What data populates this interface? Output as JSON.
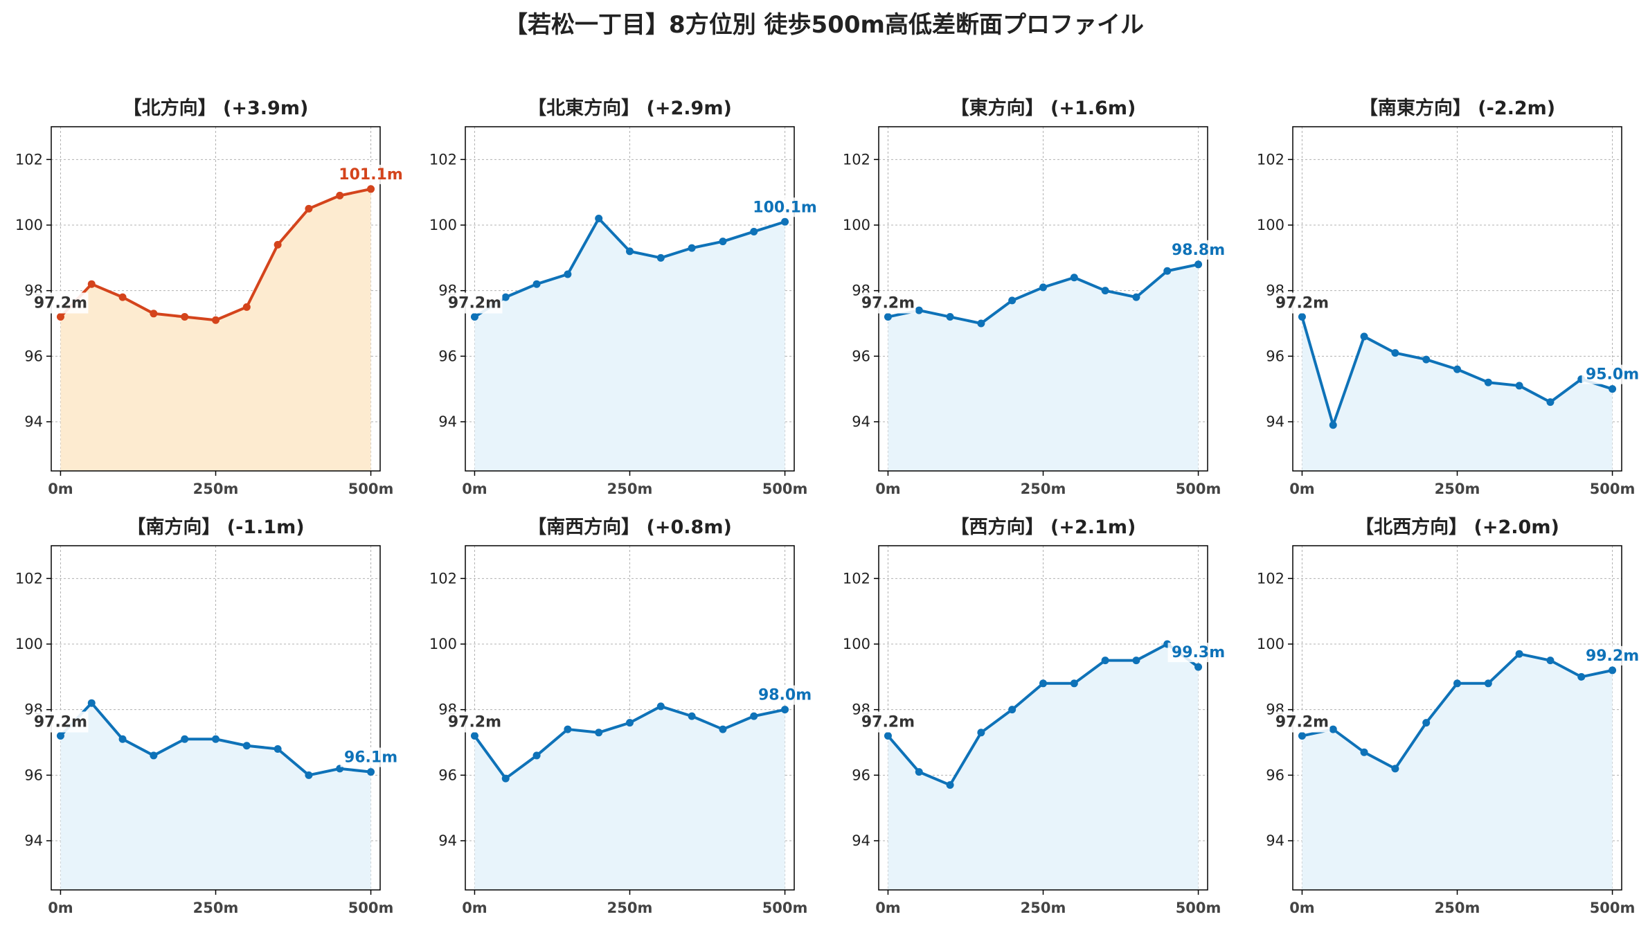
{
  "title": "【若松一丁目】8方位別 徒歩500m高低差断面プロファイル",
  "colors": {
    "highlight_line": "#d4441c",
    "highlight_fill": "#fdebd0",
    "normal_line": "#1f77b4",
    "normal_line_alt": "#0e72b8",
    "normal_fill": "#e8f4fb",
    "start_label": "#333333",
    "grid": "#b0b0b0"
  },
  "chart_data": [
    {
      "type": "line",
      "title": "【北方向】 (+3.9m)",
      "highlight": true,
      "x": [
        0,
        50,
        100,
        150,
        200,
        250,
        300,
        350,
        400,
        450,
        500
      ],
      "y": [
        97.2,
        98.2,
        97.8,
        97.3,
        97.2,
        97.1,
        97.5,
        99.4,
        100.5,
        100.9,
        101.1
      ],
      "start_label": "97.2m",
      "end_label": "101.1m"
    },
    {
      "type": "line",
      "title": "【北東方向】 (+2.9m)",
      "highlight": false,
      "x": [
        0,
        50,
        100,
        150,
        200,
        250,
        300,
        350,
        400,
        450,
        500
      ],
      "y": [
        97.2,
        97.8,
        98.2,
        98.5,
        100.2,
        99.2,
        99.0,
        99.3,
        99.5,
        99.8,
        100.1
      ],
      "start_label": "97.2m",
      "end_label": "100.1m"
    },
    {
      "type": "line",
      "title": "【東方向】 (+1.6m)",
      "highlight": false,
      "x": [
        0,
        50,
        100,
        150,
        200,
        250,
        300,
        350,
        400,
        450,
        500
      ],
      "y": [
        97.2,
        97.4,
        97.2,
        97.0,
        97.7,
        98.1,
        98.4,
        98.0,
        97.8,
        98.6,
        98.8
      ],
      "start_label": "97.2m",
      "end_label": "98.8m"
    },
    {
      "type": "line",
      "title": "【南東方向】 (-2.2m)",
      "highlight": false,
      "x": [
        0,
        50,
        100,
        150,
        200,
        250,
        300,
        350,
        400,
        450,
        500
      ],
      "y": [
        97.2,
        93.9,
        96.6,
        96.1,
        95.9,
        95.6,
        95.2,
        95.1,
        94.6,
        95.3,
        95.0
      ],
      "start_label": "97.2m",
      "end_label": "95.0m"
    },
    {
      "type": "line",
      "title": "【南方向】 (-1.1m)",
      "highlight": false,
      "x": [
        0,
        50,
        100,
        150,
        200,
        250,
        300,
        350,
        400,
        450,
        500
      ],
      "y": [
        97.2,
        98.2,
        97.1,
        96.6,
        97.1,
        97.1,
        96.9,
        96.8,
        96.0,
        96.2,
        96.1
      ],
      "start_label": "97.2m",
      "end_label": "96.1m"
    },
    {
      "type": "line",
      "title": "【南西方向】 (+0.8m)",
      "highlight": false,
      "x": [
        0,
        50,
        100,
        150,
        200,
        250,
        300,
        350,
        400,
        450,
        500
      ],
      "y": [
        97.2,
        95.9,
        96.6,
        97.4,
        97.3,
        97.6,
        98.1,
        97.8,
        97.4,
        97.8,
        98.0
      ],
      "start_label": "97.2m",
      "end_label": "98.0m"
    },
    {
      "type": "line",
      "title": "【西方向】 (+2.1m)",
      "highlight": false,
      "x": [
        0,
        50,
        100,
        150,
        200,
        250,
        300,
        350,
        400,
        450,
        500
      ],
      "y": [
        97.2,
        96.1,
        95.7,
        97.3,
        98.0,
        98.8,
        98.8,
        99.5,
        99.5,
        100.0,
        99.3
      ],
      "start_label": "97.2m",
      "end_label": "99.3m"
    },
    {
      "type": "line",
      "title": "【北西方向】 (+2.0m)",
      "highlight": false,
      "x": [
        0,
        50,
        100,
        150,
        200,
        250,
        300,
        350,
        400,
        450,
        500
      ],
      "y": [
        97.2,
        97.4,
        96.7,
        96.2,
        97.6,
        98.8,
        98.8,
        99.7,
        99.5,
        99.0,
        99.2
      ],
      "start_label": "97.2m",
      "end_label": "99.2m"
    }
  ],
  "axes": {
    "xlim": [
      -15,
      515
    ],
    "ylim": [
      92.5,
      103.0
    ],
    "yticks": [
      94,
      96,
      98,
      100,
      102
    ],
    "xticks": [
      0,
      250,
      500
    ],
    "xtick_labels": [
      "0m",
      "250m",
      "500m"
    ],
    "grid": true
  }
}
